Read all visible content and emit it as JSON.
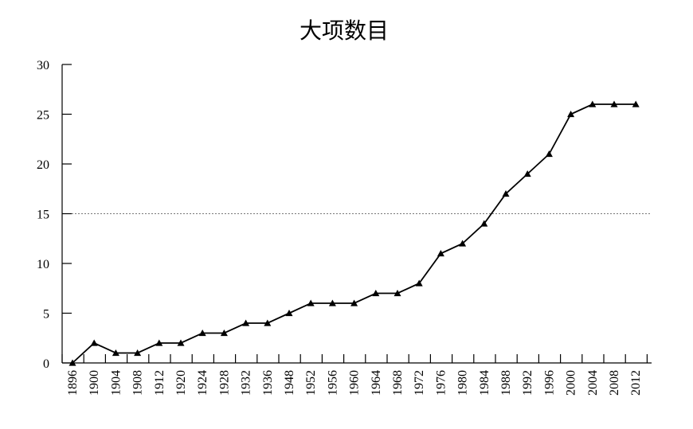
{
  "chart_data": {
    "type": "line",
    "title": "大项数目",
    "xlabel": "",
    "ylabel": "",
    "ylim": [
      0,
      30
    ],
    "yticks": [
      0,
      5,
      10,
      15,
      20,
      25,
      30
    ],
    "reference_line": 15,
    "marker": "triangle",
    "line_color": "#000000",
    "categories": [
      "1896",
      "1900",
      "1904",
      "1908",
      "1912",
      "1920",
      "1924",
      "1928",
      "1932",
      "1936",
      "1948",
      "1952",
      "1956",
      "1960",
      "1964",
      "1968",
      "1972",
      "1976",
      "1980",
      "1984",
      "1988",
      "1992",
      "1996",
      "2000",
      "2004",
      "2008",
      "2012"
    ],
    "values": [
      0,
      2,
      1,
      1,
      2,
      2,
      3,
      3,
      4,
      4,
      5,
      6,
      6,
      6,
      7,
      7,
      8,
      11,
      12,
      14,
      17,
      19,
      21,
      25,
      26,
      26,
      26
    ]
  }
}
